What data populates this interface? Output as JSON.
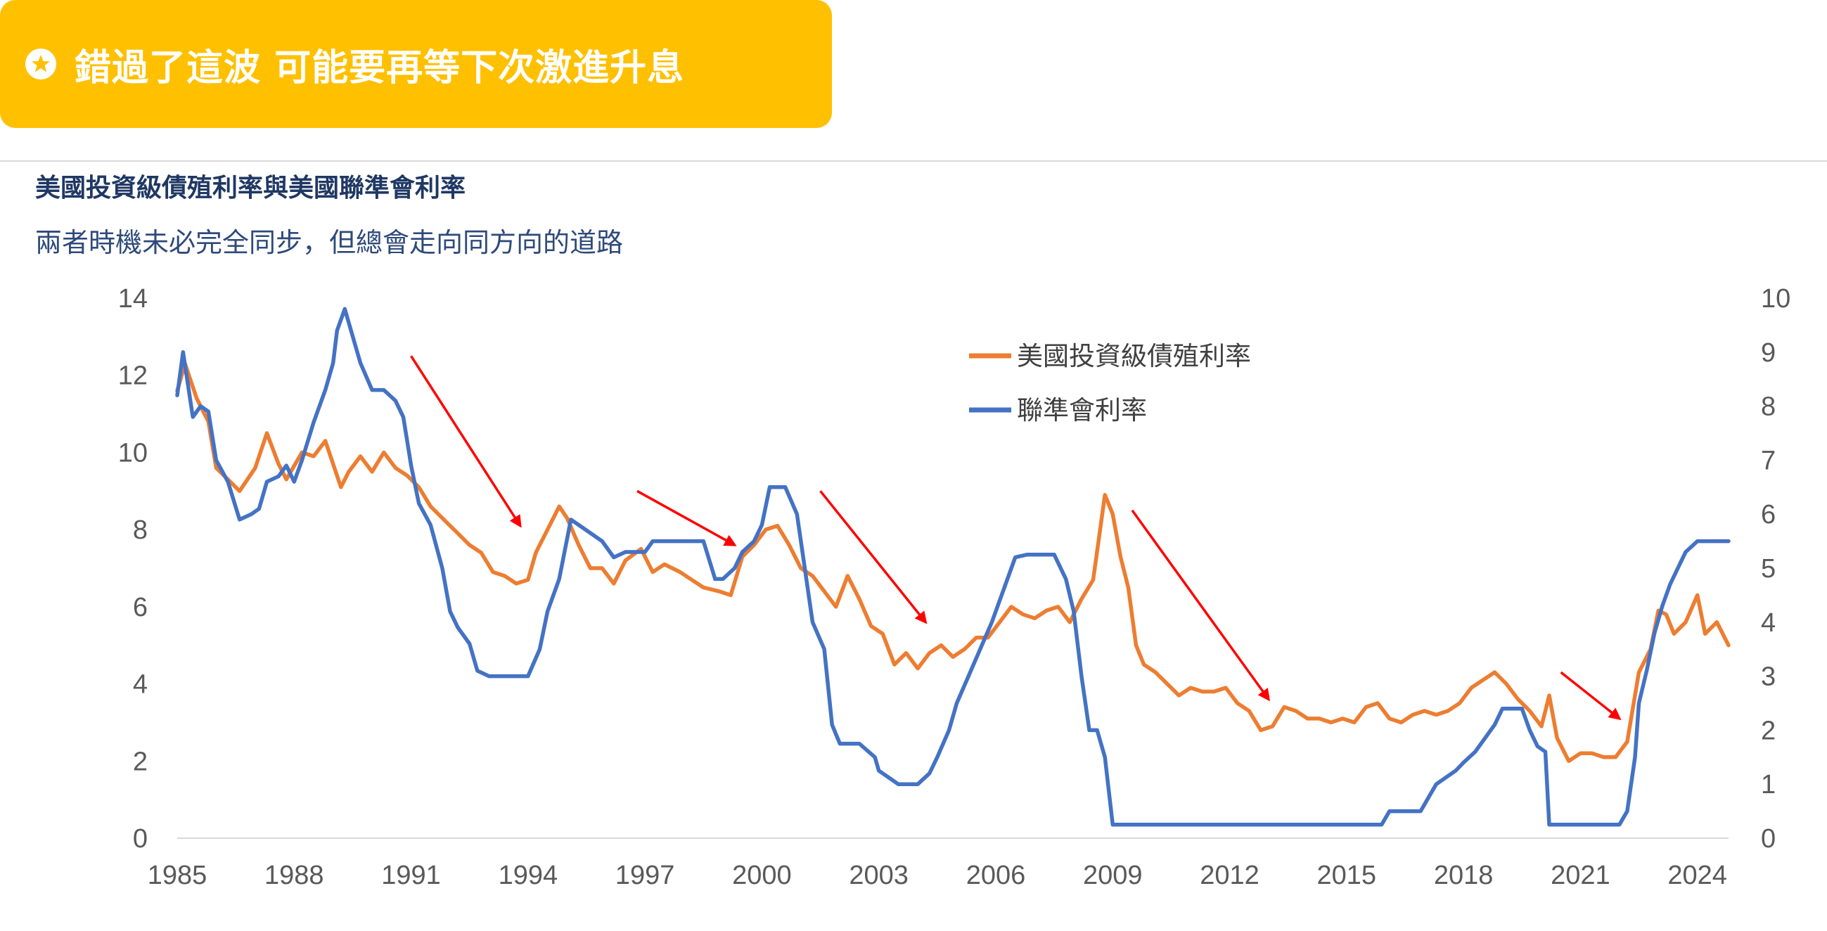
{
  "banner": {
    "icon": "star-circle-icon",
    "text": "錯過了這波 可能要再等下次激進升息",
    "color": "#FFC000"
  },
  "chart_data": {
    "type": "line",
    "title": "美國投資級債殖利率與美國聯準會利率",
    "subtitle": "兩者時機未必完全同步，但總會走向同方向的道路",
    "x_tick_labels": [
      "1985",
      "1988",
      "1991",
      "1994",
      "1997",
      "2000",
      "2003",
      "2006",
      "2009",
      "2012",
      "2015",
      "2018",
      "2021",
      "2024"
    ],
    "x_tick_values": [
      1985,
      1988,
      1991,
      1994,
      1997,
      2000,
      2003,
      2006,
      2009,
      2012,
      2015,
      2018,
      2021,
      2024
    ],
    "xlim": [
      1985,
      2024.8
    ],
    "y_left": {
      "ticks": [
        0,
        2,
        4,
        6,
        8,
        10,
        12,
        14
      ],
      "labels": [
        "0",
        "2",
        "4",
        "6",
        "8",
        "10",
        "12",
        "14"
      ],
      "ylim": [
        0,
        14
      ]
    },
    "y_right": {
      "ticks": [
        0,
        1,
        2,
        3,
        4,
        5,
        6,
        7,
        8,
        9,
        10
      ],
      "labels": [
        "0",
        "1",
        "2",
        "3",
        "4",
        "5",
        "6",
        "7",
        "8",
        "9",
        "10"
      ],
      "ylim": [
        0,
        10
      ]
    },
    "legend": {
      "position": "top-center"
    },
    "series": [
      {
        "name": "美國投資級債殖利率",
        "axis": "left",
        "color": "#ED7D31",
        "x": [
          1985.0,
          1985.2,
          1985.5,
          1985.8,
          1986.0,
          1986.3,
          1986.6,
          1987.0,
          1987.3,
          1987.6,
          1987.8,
          1988.2,
          1988.5,
          1988.8,
          1989.2,
          1989.4,
          1989.7,
          1990.0,
          1990.3,
          1990.6,
          1990.9,
          1991.2,
          1991.5,
          1991.8,
          1992.2,
          1992.5,
          1992.8,
          1993.1,
          1993.4,
          1993.7,
          1994.0,
          1994.2,
          1994.5,
          1994.8,
          1995.0,
          1995.3,
          1995.6,
          1995.9,
          1996.2,
          1996.5,
          1996.9,
          1997.2,
          1997.5,
          1997.9,
          1998.2,
          1998.5,
          1998.9,
          1999.2,
          1999.5,
          1999.8,
          2000.1,
          2000.4,
          2000.7,
          2001.0,
          2001.3,
          2001.6,
          2001.9,
          2002.2,
          2002.5,
          2002.8,
          2003.1,
          2003.4,
          2003.7,
          2004.0,
          2004.3,
          2004.6,
          2004.9,
          2005.2,
          2005.5,
          2005.8,
          2006.1,
          2006.4,
          2006.7,
          2007.0,
          2007.3,
          2007.6,
          2007.9,
          2008.2,
          2008.5,
          2008.8,
          2009.0,
          2009.2,
          2009.4,
          2009.6,
          2009.8,
          2010.1,
          2010.4,
          2010.7,
          2011.0,
          2011.3,
          2011.6,
          2011.9,
          2012.2,
          2012.5,
          2012.8,
          2013.1,
          2013.4,
          2013.7,
          2014.0,
          2014.3,
          2014.6,
          2014.9,
          2015.2,
          2015.5,
          2015.8,
          2016.1,
          2016.4,
          2016.7,
          2017.0,
          2017.3,
          2017.6,
          2017.9,
          2018.2,
          2018.5,
          2018.8,
          2019.1,
          2019.4,
          2019.7,
          2020.0,
          2020.1,
          2020.2,
          2020.4,
          2020.7,
          2021.0,
          2021.3,
          2021.6,
          2021.9,
          2022.2,
          2022.5,
          2022.8,
          2023.0,
          2023.2,
          2023.4,
          2023.7,
          2024.0,
          2024.2,
          2024.5,
          2024.8
        ],
        "values": [
          11.6,
          12.3,
          11.4,
          10.8,
          9.6,
          9.3,
          9.0,
          9.6,
          10.5,
          9.7,
          9.3,
          10.0,
          9.9,
          10.3,
          9.1,
          9.5,
          9.9,
          9.5,
          10.0,
          9.6,
          9.4,
          9.1,
          8.6,
          8.3,
          7.9,
          7.6,
          7.4,
          6.9,
          6.8,
          6.6,
          6.7,
          7.4,
          8.0,
          8.6,
          8.3,
          7.6,
          7.0,
          7.0,
          6.6,
          7.2,
          7.5,
          6.9,
          7.1,
          6.9,
          6.7,
          6.5,
          6.4,
          6.3,
          7.3,
          7.6,
          8.0,
          8.1,
          7.6,
          7.0,
          6.8,
          6.4,
          6.0,
          6.8,
          6.2,
          5.5,
          5.3,
          4.5,
          4.8,
          4.4,
          4.8,
          5.0,
          4.7,
          4.9,
          5.2,
          5.2,
          5.6,
          6.0,
          5.8,
          5.7,
          5.9,
          6.0,
          5.6,
          6.2,
          6.7,
          8.9,
          8.4,
          7.3,
          6.5,
          5.0,
          4.5,
          4.3,
          4.0,
          3.7,
          3.9,
          3.8,
          3.8,
          3.9,
          3.5,
          3.3,
          2.8,
          2.9,
          3.4,
          3.3,
          3.1,
          3.1,
          3.0,
          3.1,
          3.0,
          3.4,
          3.5,
          3.1,
          3.0,
          3.2,
          3.3,
          3.2,
          3.3,
          3.5,
          3.9,
          4.1,
          4.3,
          4.0,
          3.6,
          3.3,
          2.9,
          3.3,
          3.7,
          2.6,
          2.0,
          2.2,
          2.2,
          2.1,
          2.1,
          2.5,
          4.3,
          4.9,
          5.9,
          5.8,
          5.3,
          5.6,
          6.3,
          5.3,
          5.6,
          5.0
        ]
      },
      {
        "name": "聯準會利率",
        "axis": "right",
        "color": "#4472C4",
        "x": [
          1985.0,
          1985.15,
          1985.4,
          1985.6,
          1985.8,
          1986.0,
          1986.3,
          1986.6,
          1986.9,
          1987.1,
          1987.3,
          1987.6,
          1987.8,
          1988.0,
          1988.2,
          1988.5,
          1988.8,
          1989.0,
          1989.1,
          1989.3,
          1989.5,
          1989.7,
          1990.0,
          1990.3,
          1990.6,
          1990.8,
          1991.0,
          1991.2,
          1991.5,
          1991.8,
          1992.0,
          1992.2,
          1992.5,
          1992.7,
          1993.0,
          1993.5,
          1994.0,
          1994.3,
          1994.5,
          1994.8,
          1995.1,
          1995.5,
          1995.9,
          1996.2,
          1996.5,
          1997.0,
          1997.2,
          1997.5,
          1998.0,
          1998.5,
          1998.8,
          1999.0,
          1999.3,
          1999.5,
          1999.8,
          2000.0,
          2000.2,
          2000.4,
          2000.6,
          2000.9,
          2001.1,
          2001.3,
          2001.6,
          2001.8,
          2002.0,
          2002.5,
          2002.9,
          2003.0,
          2003.5,
          2004.0,
          2004.3,
          2004.5,
          2004.8,
          2005.0,
          2005.3,
          2005.6,
          2005.9,
          2006.2,
          2006.5,
          2006.8,
          2007.0,
          2007.5,
          2007.8,
          2008.0,
          2008.2,
          2008.4,
          2008.6,
          2008.8,
          2009.0,
          2010.0,
          2012.0,
          2014.0,
          2015.0,
          2015.9,
          2016.1,
          2016.9,
          2017.1,
          2017.3,
          2017.5,
          2017.8,
          2018.0,
          2018.3,
          2018.5,
          2018.8,
          2019.0,
          2019.5,
          2019.7,
          2019.9,
          2020.1,
          2020.2,
          2021.0,
          2022.0,
          2022.2,
          2022.4,
          2022.5,
          2022.7,
          2022.9,
          2023.1,
          2023.3,
          2023.5,
          2023.7,
          2024.0,
          2024.5,
          2024.8
        ],
        "values": [
          8.2,
          9.0,
          7.8,
          8.0,
          7.9,
          7.0,
          6.6,
          5.9,
          6.0,
          6.1,
          6.6,
          6.7,
          6.9,
          6.6,
          7.0,
          7.7,
          8.3,
          8.8,
          9.4,
          9.8,
          9.3,
          8.8,
          8.3,
          8.3,
          8.1,
          7.8,
          6.9,
          6.2,
          5.8,
          5.0,
          4.2,
          3.9,
          3.6,
          3.1,
          3.0,
          3.0,
          3.0,
          3.5,
          4.2,
          4.8,
          5.9,
          5.7,
          5.5,
          5.2,
          5.3,
          5.3,
          5.5,
          5.5,
          5.5,
          5.5,
          4.8,
          4.8,
          5.0,
          5.3,
          5.5,
          5.8,
          6.5,
          6.5,
          6.5,
          6.0,
          5.0,
          4.0,
          3.5,
          2.1,
          1.75,
          1.75,
          1.5,
          1.25,
          1.0,
          1.0,
          1.2,
          1.5,
          2.0,
          2.5,
          3.0,
          3.5,
          4.0,
          4.6,
          5.2,
          5.25,
          5.25,
          5.25,
          4.8,
          4.2,
          3.0,
          2.0,
          2.0,
          1.5,
          0.25,
          0.25,
          0.25,
          0.25,
          0.25,
          0.25,
          0.5,
          0.5,
          0.75,
          1.0,
          1.1,
          1.25,
          1.4,
          1.6,
          1.8,
          2.1,
          2.4,
          2.4,
          2.0,
          1.7,
          1.6,
          0.25,
          0.25,
          0.25,
          0.5,
          1.5,
          2.5,
          3.1,
          3.8,
          4.3,
          4.7,
          5.0,
          5.3,
          5.5,
          5.5,
          5.5
        ]
      }
    ],
    "annotations": [
      {
        "type": "arrow",
        "color": "#FF0000",
        "from": [
          1991.0,
          12.5
        ],
        "to": [
          1993.8,
          8.1
        ]
      },
      {
        "type": "arrow",
        "color": "#FF0000",
        "from": [
          1996.8,
          9.0
        ],
        "to": [
          1999.3,
          7.6
        ]
      },
      {
        "type": "arrow",
        "color": "#FF0000",
        "from": [
          2001.5,
          9.0
        ],
        "to": [
          2004.2,
          5.6
        ]
      },
      {
        "type": "arrow",
        "color": "#FF0000",
        "from": [
          2009.5,
          8.5
        ],
        "to": [
          2013.0,
          3.6
        ]
      },
      {
        "type": "arrow",
        "color": "#FF0000",
        "from": [
          2020.5,
          4.3
        ],
        "to": [
          2022.0,
          3.1
        ]
      }
    ]
  }
}
